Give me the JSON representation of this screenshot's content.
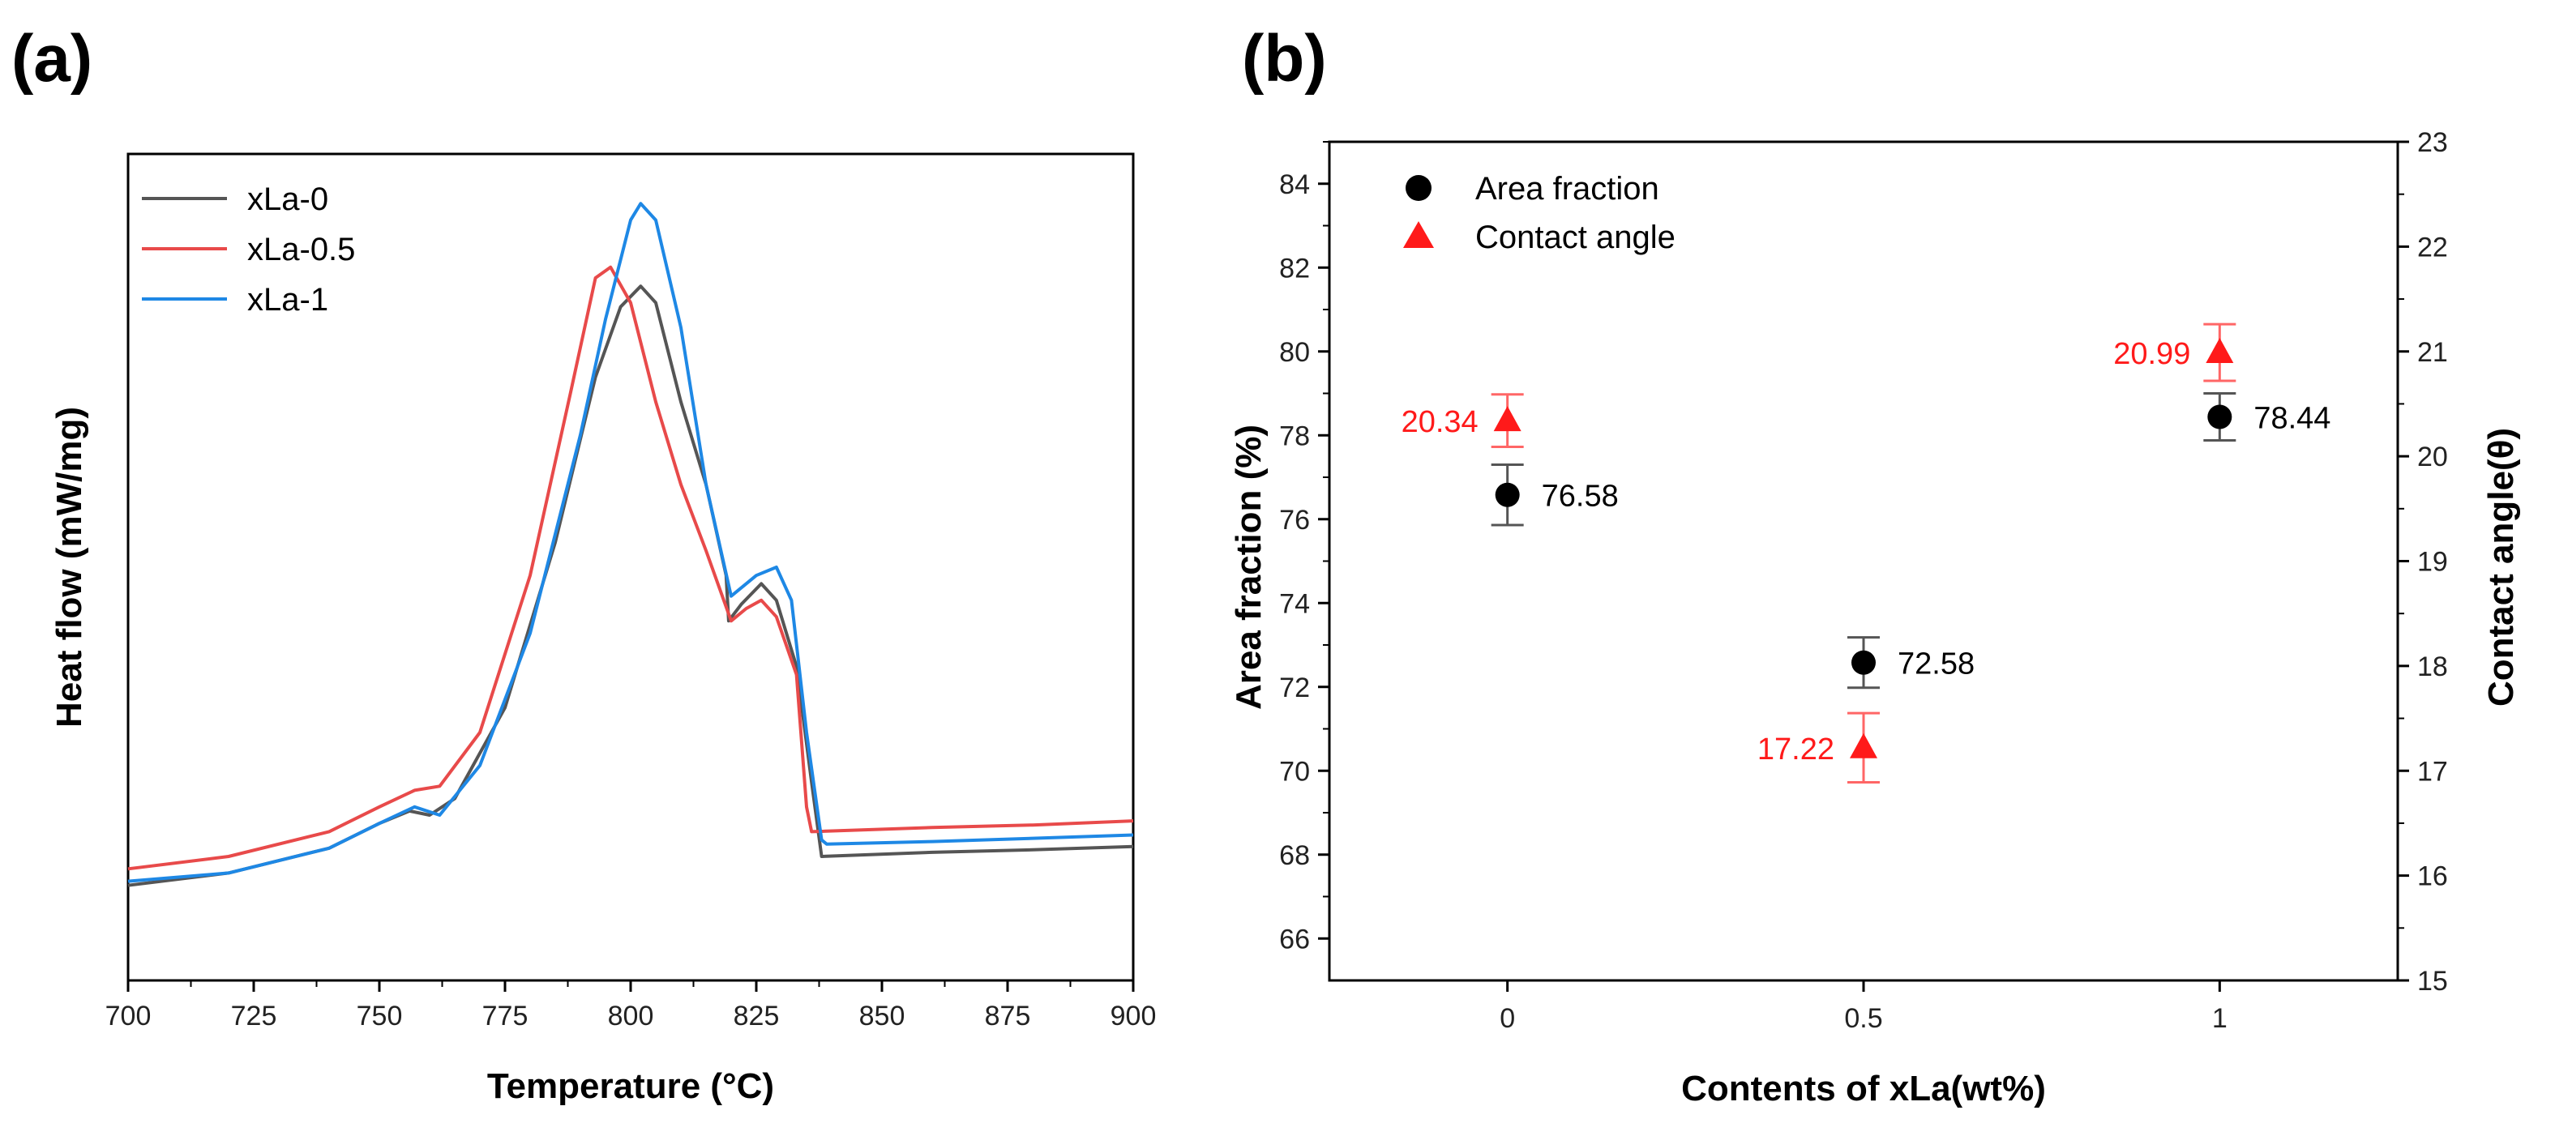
{
  "panels": {
    "a": "(a)",
    "b": "(b)"
  },
  "chart_data": [
    {
      "type": "line",
      "panel": "(a)",
      "xlabel": "Temperature (°C)",
      "ylabel": "Heat flow (mW/mg)",
      "xlim": [
        700,
        900
      ],
      "ylim": [
        0,
        1
      ],
      "y_ticks_shown": false,
      "x_ticks": [
        "700",
        "725",
        "750",
        "775",
        "800",
        "825",
        "850",
        "875",
        "900"
      ],
      "legend_position": "top-left",
      "series": [
        {
          "name": "xLa-0",
          "color": "#555555",
          "x": [
            700,
            720,
            740,
            750,
            756,
            760,
            765,
            775,
            785,
            793,
            798,
            802,
            805,
            810,
            815,
            819,
            819.5,
            822,
            826,
            829,
            833,
            836,
            838,
            860,
            880,
            900
          ],
          "y": [
            0.115,
            0.13,
            0.16,
            0.19,
            0.205,
            0.2,
            0.22,
            0.33,
            0.53,
            0.73,
            0.815,
            0.84,
            0.82,
            0.7,
            0.6,
            0.49,
            0.435,
            0.455,
            0.48,
            0.46,
            0.38,
            0.24,
            0.15,
            0.155,
            0.158,
            0.162
          ]
        },
        {
          "name": "xLa-0.5",
          "color": "#e84a4a",
          "x": [
            700,
            720,
            740,
            750,
            757,
            762,
            770,
            780,
            788,
            793,
            796,
            800,
            805,
            810,
            815,
            820,
            823,
            826,
            829,
            833,
            835,
            836,
            860,
            880,
            900
          ],
          "y": [
            0.135,
            0.15,
            0.18,
            0.21,
            0.23,
            0.235,
            0.3,
            0.49,
            0.71,
            0.85,
            0.863,
            0.82,
            0.7,
            0.6,
            0.52,
            0.435,
            0.45,
            0.46,
            0.44,
            0.37,
            0.21,
            0.18,
            0.185,
            0.188,
            0.193
          ]
        },
        {
          "name": "xLa-1",
          "color": "#1e88e5",
          "x": [
            700,
            720,
            740,
            750,
            757,
            762,
            770,
            780,
            790,
            795,
            800,
            802,
            805,
            810,
            815,
            820,
            825,
            829,
            832,
            835,
            838,
            839,
            860,
            880,
            900
          ],
          "y": [
            0.12,
            0.13,
            0.16,
            0.19,
            0.21,
            0.2,
            0.26,
            0.42,
            0.66,
            0.8,
            0.92,
            0.94,
            0.92,
            0.79,
            0.6,
            0.465,
            0.49,
            0.5,
            0.46,
            0.3,
            0.17,
            0.165,
            0.168,
            0.172,
            0.176
          ]
        }
      ]
    },
    {
      "type": "scatter",
      "panel": "(b)",
      "xlabel": "Contents of xLa(wt%)",
      "ylabel_left": "Area fraction (%)",
      "ylabel_right": "Contact angle(θ)",
      "xlim": [
        -0.25,
        1.25
      ],
      "ylim_left": [
        65,
        85
      ],
      "ylim_right": [
        15,
        23
      ],
      "x_ticks": [
        0,
        0.5,
        1
      ],
      "x_tick_labels": [
        "0",
        "0.5",
        "1"
      ],
      "y_left_ticks": [
        "66",
        "68",
        "70",
        "72",
        "74",
        "76",
        "78",
        "80",
        "82",
        "84"
      ],
      "y_right_ticks": [
        "15",
        "16",
        "17",
        "18",
        "19",
        "20",
        "21",
        "22",
        "23"
      ],
      "legend_position": "top-left",
      "series": [
        {
          "name": "Area fraction",
          "marker": "circle",
          "color": "#000000",
          "axis": "left",
          "x": [
            0,
            0.5,
            1
          ],
          "y": [
            76.58,
            72.58,
            78.44
          ],
          "err": [
            0.72,
            0.6,
            0.56
          ],
          "labels": [
            "76.58",
            "72.58",
            "78.44"
          ]
        },
        {
          "name": "Contact angle",
          "marker": "triangle",
          "color": "#ff1a1a",
          "axis": "right",
          "x": [
            0,
            0.5,
            1
          ],
          "y": [
            20.34,
            17.22,
            20.99
          ],
          "err": [
            0.25,
            0.33,
            0.27
          ],
          "labels": [
            "20.34",
            "17.22",
            "20.99"
          ]
        }
      ]
    }
  ]
}
